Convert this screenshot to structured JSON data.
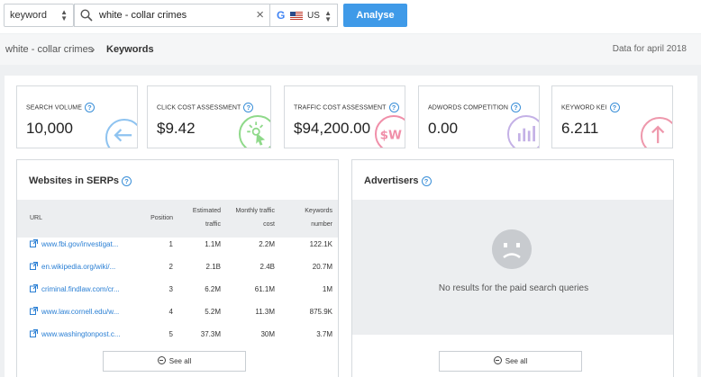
{
  "search": {
    "mode": "keyword",
    "query": "white - collar crimes",
    "engine_icon": "google-icon",
    "region": "US",
    "analyse_label": "Analyse"
  },
  "breadcrumb": {
    "root": "white - collar crimes",
    "current": "Keywords",
    "data_for": "Data for april 2018"
  },
  "metrics": [
    {
      "label": "Search volume",
      "value": "10,000",
      "icon": "arrow-left-icon",
      "color": "#8ec3f0"
    },
    {
      "label": "Click cost assessment",
      "value": "$9.42",
      "icon": "cursor-click-icon",
      "color": "#8fd98a"
    },
    {
      "label": "Traffic cost assessment",
      "value": "$94,200.00",
      "icon": "dollar-icon",
      "color": "#f08fa9"
    },
    {
      "label": "Adwords competition",
      "value": "0.00",
      "icon": "bar-chart-icon",
      "color": "#c4b1e6"
    },
    {
      "label": "Keyword KEI",
      "value": "6.211",
      "icon": "arrow-up-icon",
      "color": "#ee98ac"
    }
  ],
  "serps": {
    "title": "Websites in SERPs",
    "columns": {
      "url": "URL",
      "position": "Position",
      "traffic_1": "Estimated",
      "traffic_2": "traffic",
      "cost_1": "Monthly traffic",
      "cost_2": "cost",
      "kw_1": "Keywords",
      "kw_2": "number"
    },
    "rows": [
      {
        "url": "www.fbi.gov/investigat...",
        "position": "1",
        "traffic": "1.1M",
        "cost": "2.2M",
        "keywords": "122.1K"
      },
      {
        "url": "en.wikipedia.org/wiki/...",
        "position": "2",
        "traffic": "2.1B",
        "cost": "2.4B",
        "keywords": "20.7M"
      },
      {
        "url": "criminal.findlaw.com/cr...",
        "position": "3",
        "traffic": "6.2M",
        "cost": "61.1M",
        "keywords": "1M"
      },
      {
        "url": "www.law.cornell.edu/w...",
        "position": "4",
        "traffic": "5.2M",
        "cost": "11.3M",
        "keywords": "875.9K"
      },
      {
        "url": "www.washingtonpost.c...",
        "position": "5",
        "traffic": "37.3M",
        "cost": "30M",
        "keywords": "3.7M"
      }
    ],
    "see_all": "See all"
  },
  "advertisers": {
    "title": "Advertisers",
    "empty_text": "No results for the paid search queries",
    "see_all": "See all"
  }
}
